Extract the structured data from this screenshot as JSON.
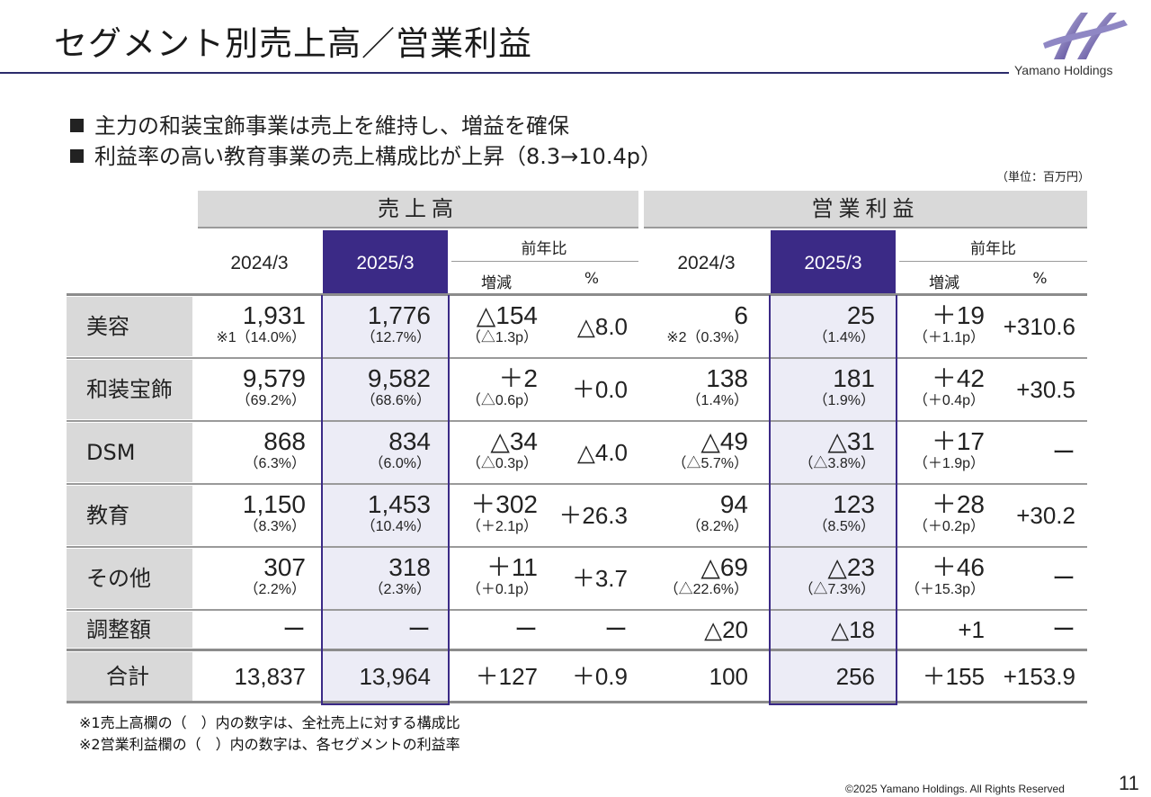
{
  "title": "セグメント別売上高／営業利益",
  "brand": {
    "name": "Yamano Holdings",
    "color": "#3b2a86"
  },
  "bullets": [
    "主力の和装宝飾事業は売上を維持し、増益を確保",
    "利益率の高い教育事業の売上構成比が上昇（8.3→10.4p）"
  ],
  "unit": "（単位：百万円）",
  "table": {
    "sales_header": "売上高",
    "profit_header": "営業利益",
    "year_prev": "2024/3",
    "year_cur": "2025/3",
    "yoy": "前年比",
    "diff": "増減",
    "pct": "%",
    "rows": [
      {
        "label": "美容",
        "s_prev": "1,931",
        "s_prev_sub": "※1（14.0%）",
        "s_cur": "1,776",
        "s_cur_sub": "（12.7%）",
        "s_diff": "△154",
        "s_diff_sub": "（△1.3p）",
        "s_pct": "△8.0",
        "p_prev": "6",
        "p_prev_sub": "※2（0.3%）",
        "p_cur": "25",
        "p_cur_sub": "（1.4%）",
        "p_diff": "＋19",
        "p_diff_sub": "（＋1.1p）",
        "p_pct": "+310.6"
      },
      {
        "label": "和装宝飾",
        "s_prev": "9,579",
        "s_prev_sub": "（69.2%）",
        "s_cur": "9,582",
        "s_cur_sub": "（68.6%）",
        "s_diff": "＋2",
        "s_diff_sub": "（△0.6p）",
        "s_pct": "＋0.0",
        "p_prev": "138",
        "p_prev_sub": "（1.4%）",
        "p_cur": "181",
        "p_cur_sub": "（1.9%）",
        "p_diff": "＋42",
        "p_diff_sub": "（＋0.4p）",
        "p_pct": "+30.5"
      },
      {
        "label": "DSM",
        "s_prev": "868",
        "s_prev_sub": "（6.3%）",
        "s_cur": "834",
        "s_cur_sub": "（6.0%）",
        "s_diff": "△34",
        "s_diff_sub": "（△0.3p）",
        "s_pct": "△4.0",
        "p_prev": "△49",
        "p_prev_sub": "（△5.7%）",
        "p_cur": "△31",
        "p_cur_sub": "（△3.8%）",
        "p_diff": "＋17",
        "p_diff_sub": "（＋1.9p）",
        "p_pct": "ー"
      },
      {
        "label": "教育",
        "s_prev": "1,150",
        "s_prev_sub": "（8.3%）",
        "s_cur": "1,453",
        "s_cur_sub": "（10.4%）",
        "s_diff": "＋302",
        "s_diff_sub": "（＋2.1p）",
        "s_pct": "＋26.3",
        "p_prev": "94",
        "p_prev_sub": "（8.2%）",
        "p_cur": "123",
        "p_cur_sub": "（8.5%）",
        "p_diff": "＋28",
        "p_diff_sub": "（＋0.2p）",
        "p_pct": "+30.2"
      },
      {
        "label": "その他",
        "s_prev": "307",
        "s_prev_sub": "（2.2%）",
        "s_cur": "318",
        "s_cur_sub": "（2.3%）",
        "s_diff": "＋11",
        "s_diff_sub": "（＋0.1p）",
        "s_pct": "＋3.7",
        "p_prev": "△69",
        "p_prev_sub": "（△22.6%）",
        "p_cur": "△23",
        "p_cur_sub": "（△7.3%）",
        "p_diff": "＋46",
        "p_diff_sub": "（＋15.3p）",
        "p_pct": "ー"
      }
    ],
    "adjust": {
      "label": "調整額",
      "s_prev": "ー",
      "s_cur": "ー",
      "s_diff": "ー",
      "s_pct": "ー",
      "p_prev": "△20",
      "p_cur": "△18",
      "p_diff": "+1",
      "p_pct": "ー"
    },
    "total": {
      "label": "合計",
      "s_prev": "13,837",
      "s_cur": "13,964",
      "s_diff": "＋127",
      "s_pct": "＋0.9",
      "p_prev": "100",
      "p_cur": "256",
      "p_diff": "＋155",
      "p_pct": "+153.9"
    }
  },
  "notes": [
    "※1売上高欄の（　）内の数字は、全社売上に対する構成比",
    "※2営業利益欄の（　）内の数字は、各セグメントの利益率"
  ],
  "copyright": "©2025 Yamano Holdings. All Rights Reserved",
  "page_number": "11"
}
